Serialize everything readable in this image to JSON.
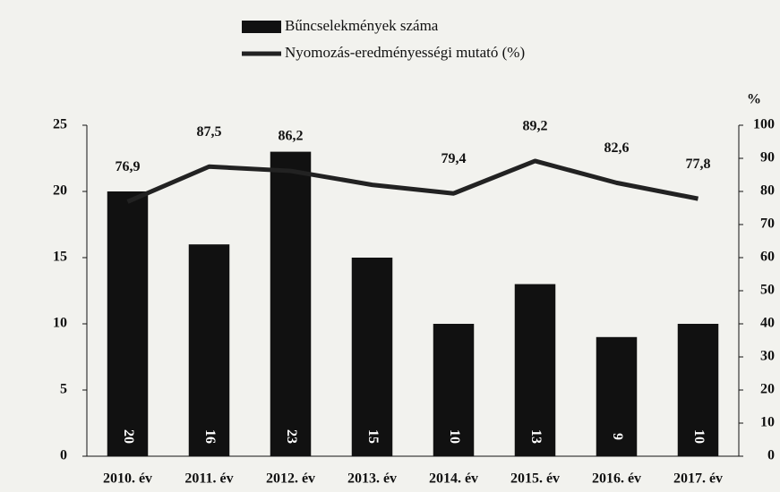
{
  "chart_data": {
    "type": "bar-line",
    "categories": [
      "2010. év",
      "2011. év",
      "2012. év",
      "2013. év",
      "2014. év",
      "2015. év",
      "2016. év",
      "2017. év"
    ],
    "series": [
      {
        "name": "Bűncselekmények száma",
        "type": "bar",
        "color": "#111111",
        "values": [
          20,
          16,
          23,
          15,
          10,
          13,
          9,
          10
        ]
      },
      {
        "name": "Nyomozás-eredményességi mutató (%)",
        "type": "line",
        "axis": "y2",
        "color": "#222222",
        "values": [
          76.9,
          87.5,
          86.2,
          82,
          79.4,
          89.2,
          82.6,
          77.8
        ],
        "value_labels": [
          "76,9",
          "87,5",
          "86,2",
          null,
          "79,4",
          "89,2",
          "82,6",
          "77,8"
        ]
      }
    ],
    "ylim": [
      0,
      25
    ],
    "yticks": [
      0,
      5,
      10,
      15,
      20,
      25
    ],
    "y2lim": [
      0,
      100
    ],
    "y2ticks": [
      0,
      10,
      20,
      30,
      40,
      50,
      60,
      70,
      80,
      90,
      100
    ],
    "y2label": "%",
    "legend": "top"
  }
}
